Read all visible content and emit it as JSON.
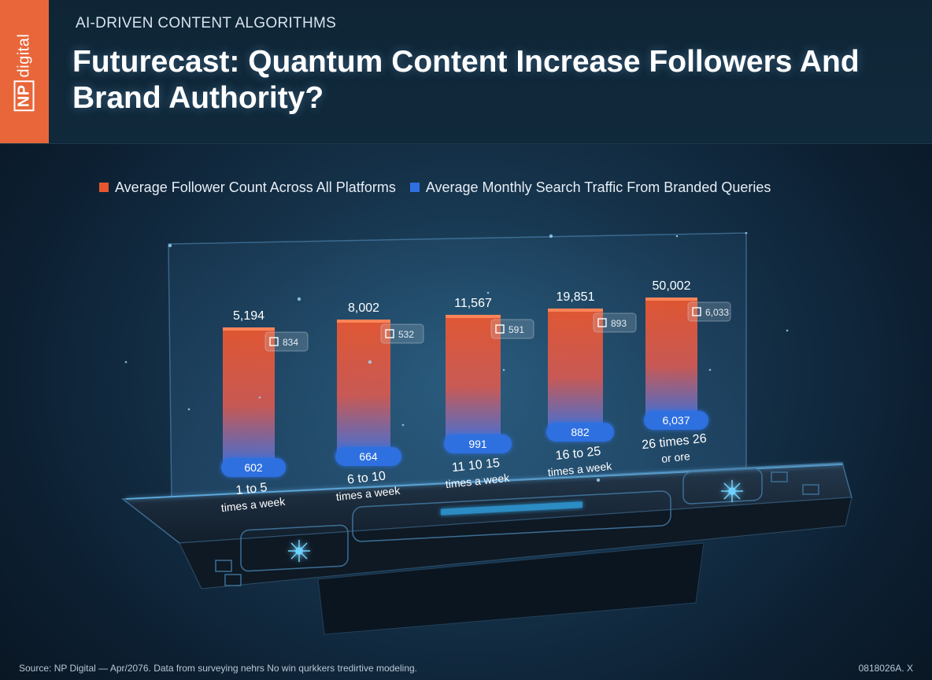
{
  "brand": {
    "logo_text": "digital",
    "logo_badge": "NP",
    "accent": "#e8663a"
  },
  "header": {
    "kicker": "AI-DRIVEN CONTENT ALGORITHMS",
    "title": "Futurecast: Quantum Content Increase Followers And Brand Authority?"
  },
  "chart_data": {
    "type": "bar",
    "categories": [
      [
        "1 to 5",
        "times a week"
      ],
      [
        "6 to 10",
        "times a week"
      ],
      [
        "11 10 15",
        "times a week"
      ],
      [
        "16 to 25",
        "times a week"
      ],
      [
        "26 times 26",
        "or ore"
      ]
    ],
    "series": [
      {
        "name": "Average Follower Count Across All Platforms",
        "color": "#e8562f",
        "labels": [
          "5,194",
          "8,002",
          "11,567",
          "19,851",
          "50,002"
        ]
      },
      {
        "name": "Average Monthly Search Traffic From Branded Queries",
        "color": "#2f6fe0",
        "labels": [
          "602",
          "664",
          "991",
          "882",
          "6,037"
        ]
      }
    ],
    "side_labels": [
      "834",
      "532",
      "591",
      "893",
      "6,033"
    ],
    "side_icons": [
      "lock-icon",
      "wrench-icon",
      "bars-icon",
      "chart-icon",
      "shield-icon"
    ]
  },
  "footer": {
    "source": "Source: NP Digital — Apr/2076. Data from surveying nehrs No win qurkkers tredirtive modeling.",
    "code": "0818026A. X"
  }
}
